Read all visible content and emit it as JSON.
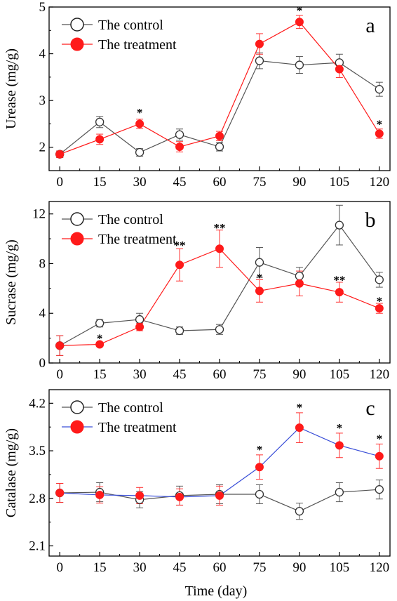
{
  "xlabel": "Time (day)",
  "colors": {
    "control_line": "#555555",
    "treatment_marker": "#ff1a1a",
    "treatment_line_red": "#ff1a1a",
    "treatment_line_blue": "#3a4fd8",
    "error_bar": "#ff3030"
  },
  "chart_data": [
    {
      "panel": "a",
      "type": "line",
      "ylabel": "Urease (mg/g)",
      "ylim": [
        1.5,
        5
      ],
      "yticks": [
        2,
        3,
        4,
        5
      ],
      "x": [
        0,
        15,
        30,
        45,
        60,
        75,
        90,
        105,
        120
      ],
      "xtick_labels": [
        "0",
        "15",
        "30",
        "45",
        "60",
        "75",
        "90",
        "105",
        "120"
      ],
      "legend": [
        "The control",
        "The treatment"
      ],
      "treatment_line_color": "#ff1a1a",
      "series": [
        {
          "name": "The control",
          "values": [
            1.85,
            2.54,
            1.89,
            2.27,
            2.01,
            3.85,
            3.76,
            3.81,
            3.24
          ],
          "errors": [
            0.07,
            0.12,
            0.08,
            0.12,
            0.09,
            0.17,
            0.18,
            0.18,
            0.15
          ]
        },
        {
          "name": "The treatment",
          "values": [
            1.85,
            2.17,
            2.5,
            2.01,
            2.24,
            4.21,
            4.68,
            3.67,
            2.29
          ],
          "errors": [
            0.07,
            0.11,
            0.1,
            0.11,
            0.1,
            0.22,
            0.14,
            0.18,
            0.1
          ]
        }
      ],
      "annotations": [
        {
          "x": 30,
          "text": "*",
          "y": 2.75
        },
        {
          "x": 90,
          "text": "*",
          "y": 4.93
        },
        {
          "x": 120,
          "text": "*",
          "y": 2.5
        }
      ]
    },
    {
      "panel": "b",
      "type": "line",
      "ylabel": "Sucrase (mg/g)",
      "ylim": [
        0,
        13
      ],
      "yticks": [
        0,
        4,
        8,
        12
      ],
      "x": [
        0,
        15,
        30,
        45,
        60,
        75,
        90,
        105,
        120
      ],
      "xtick_labels": [
        "0",
        "15",
        "30",
        "45",
        "60",
        "75",
        "90",
        "105",
        "120"
      ],
      "legend": [
        "The control",
        "The treatment"
      ],
      "treatment_line_color": "#ff1a1a",
      "series": [
        {
          "name": "The control",
          "values": [
            1.4,
            3.2,
            3.5,
            2.6,
            2.7,
            8.1,
            7.0,
            11.1,
            6.7
          ],
          "errors": [
            0.8,
            0.3,
            0.5,
            0.3,
            0.4,
            1.2,
            0.7,
            1.6,
            0.6
          ]
        },
        {
          "name": "The treatment",
          "values": [
            1.4,
            1.5,
            2.9,
            7.9,
            9.2,
            5.8,
            6.4,
            5.7,
            4.4
          ],
          "errors": [
            0.8,
            0.1,
            0.3,
            1.3,
            1.5,
            0.9,
            1.0,
            0.8,
            0.4
          ]
        }
      ],
      "annotations": [
        {
          "x": 15,
          "text": "*",
          "y": 2.0
        },
        {
          "x": 45,
          "text": "**",
          "y": 9.5
        },
        {
          "x": 60,
          "text": "**",
          "y": 10.9
        },
        {
          "x": 75,
          "text": "*",
          "y": 6.9
        },
        {
          "x": 105,
          "text": "**",
          "y": 6.7
        },
        {
          "x": 120,
          "text": "*",
          "y": 5.0
        }
      ]
    },
    {
      "panel": "c",
      "type": "line",
      "ylabel": "Catalase (mg/g)",
      "ylim": [
        1.95,
        4.4
      ],
      "yticks": [
        2.1,
        2.8,
        3.5,
        4.2
      ],
      "x": [
        0,
        15,
        30,
        45,
        60,
        75,
        90,
        105,
        120
      ],
      "xtick_labels": [
        "0",
        "15",
        "30",
        "45",
        "60",
        "75",
        "90",
        "105",
        "120"
      ],
      "legend": [
        "The control",
        "The treatment"
      ],
      "treatment_line_color": "#3a4fd8",
      "series": [
        {
          "name": "The control",
          "values": [
            2.88,
            2.89,
            2.78,
            2.84,
            2.86,
            2.86,
            2.61,
            2.89,
            2.93
          ],
          "errors": [
            0.14,
            0.14,
            0.12,
            0.14,
            0.14,
            0.14,
            0.12,
            0.14,
            0.14
          ]
        },
        {
          "name": "The treatment",
          "values": [
            2.88,
            2.85,
            2.84,
            2.82,
            2.84,
            3.26,
            3.84,
            3.58,
            3.42
          ],
          "errors": [
            0.14,
            0.12,
            0.12,
            0.12,
            0.14,
            0.18,
            0.22,
            0.18,
            0.18
          ]
        }
      ],
      "annotations": [
        {
          "x": 75,
          "text": "*",
          "y": 3.52
        },
        {
          "x": 90,
          "text": "*",
          "y": 4.14
        },
        {
          "x": 105,
          "text": "*",
          "y": 3.84
        },
        {
          "x": 120,
          "text": "*",
          "y": 3.68
        }
      ]
    }
  ]
}
